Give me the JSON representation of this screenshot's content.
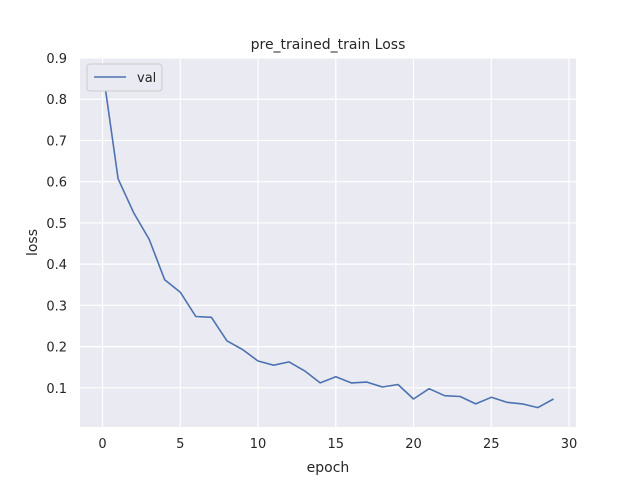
{
  "chart_data": {
    "type": "line",
    "title": "pre_trained_train Loss",
    "xlabel": "epoch",
    "ylabel": "loss",
    "xlim": [
      -1.45,
      30.45
    ],
    "ylim": [
      0.005,
      0.9
    ],
    "xticks": [
      0,
      5,
      10,
      15,
      20,
      25,
      30
    ],
    "yticks": [
      0.1,
      0.2,
      0.3,
      0.4,
      0.5,
      0.6,
      0.7,
      0.8,
      0.9
    ],
    "grid": true,
    "legend": {
      "position": "top-left",
      "entries": [
        "val"
      ]
    },
    "series": [
      {
        "name": "val",
        "color": "#4c72b0",
        "x": [
          0,
          1,
          2,
          3,
          4,
          5,
          6,
          7,
          8,
          9,
          10,
          11,
          12,
          13,
          14,
          15,
          16,
          17,
          18,
          19,
          20,
          21,
          22,
          23,
          24,
          25,
          26,
          27,
          28,
          29
        ],
        "y": [
          0.875,
          0.607,
          0.525,
          0.46,
          0.362,
          0.332,
          0.273,
          0.271,
          0.214,
          0.193,
          0.165,
          0.155,
          0.163,
          0.141,
          0.112,
          0.127,
          0.112,
          0.114,
          0.102,
          0.108,
          0.073,
          0.098,
          0.081,
          0.079,
          0.061,
          0.077,
          0.065,
          0.061,
          0.052,
          0.073
        ]
      }
    ]
  }
}
